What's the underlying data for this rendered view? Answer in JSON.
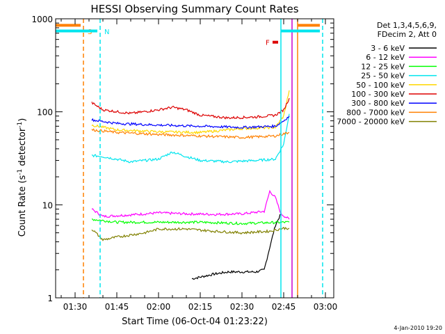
{
  "chart_data": {
    "type": "line",
    "title": "HESSI Observing Summary Count Rates",
    "xlabel": "Start Time (06-Oct-04 01:23:22)",
    "ylabel_main": "Count Rate (s",
    "ylabel_sup1": "-1",
    "ylabel_mid": " detector",
    "ylabel_sup2": "-1",
    "ylabel_end": ")",
    "y_scale": "log",
    "x_range": [
      "01:23",
      "03:03"
    ],
    "y_range": [
      1,
      1000
    ],
    "x_ticks": [
      "01:30",
      "01:45",
      "02:00",
      "02:15",
      "02:30",
      "02:45",
      "03:00"
    ],
    "y_ticks": [
      "1",
      "10",
      "100",
      "1000"
    ],
    "legend_header": [
      "Det 1,3,4,5,6,9,",
      "FDecim 2, Att 0"
    ],
    "legend_position": "right",
    "date_stamp": "4-Jan-2010 19:20",
    "markers": [
      {
        "label": "S",
        "time": "01:33",
        "color": "#ff8000",
        "style": "dashed"
      },
      {
        "label": "N",
        "time": "01:39",
        "color": "#00e5ee",
        "style": "dashed"
      },
      {
        "label": "",
        "time": "02:44",
        "color": "#00e5ee",
        "style": "solid"
      },
      {
        "label": "",
        "time": "02:48",
        "color": "#cc00cc",
        "style": "solid"
      },
      {
        "label": "",
        "time": "02:50",
        "color": "#ff8000",
        "style": "solid"
      },
      {
        "label": "",
        "time": "02:59",
        "color": "#00e5ee",
        "style": "dashed"
      }
    ],
    "flags": [
      {
        "label": "S",
        "from": "01:23",
        "to": "01:32",
        "color": "#ff8000",
        "level": 850
      },
      {
        "label": "N",
        "from": "01:23",
        "to": "01:38",
        "color": "#00e5ee",
        "level": 740
      },
      {
        "label": "",
        "from": "02:50",
        "to": "02:58",
        "color": "#ff8000",
        "level": 850
      },
      {
        "label": "",
        "from": "02:44",
        "to": "02:58",
        "color": "#00e5ee",
        "level": 740
      },
      {
        "label": "F",
        "from": "02:41",
        "to": "02:43",
        "color": "#dd0000",
        "level": 560
      }
    ],
    "series": [
      {
        "name": "3 - 6 keV",
        "color": "#000000",
        "x": [
          "02:12",
          "02:20",
          "02:25",
          "02:30",
          "02:35",
          "02:38",
          "02:40",
          "02:42",
          "02:44"
        ],
        "values": [
          1.6,
          1.8,
          1.9,
          1.9,
          1.9,
          2.0,
          3.5,
          6.0,
          8.0
        ]
      },
      {
        "name": "6 - 12 keV",
        "color": "#ff00ff",
        "x": [
          "01:36",
          "01:40",
          "01:50",
          "02:00",
          "02:10",
          "02:20",
          "02:30",
          "02:38",
          "02:40",
          "02:42",
          "02:44",
          "02:47"
        ],
        "values": [
          9.0,
          7.5,
          7.8,
          8.2,
          8.0,
          7.9,
          8.0,
          8.5,
          14.0,
          12.0,
          8.0,
          7.0
        ]
      },
      {
        "name": "12 - 25 keV",
        "color": "#00ff00",
        "x": [
          "01:36",
          "01:45",
          "02:00",
          "02:15",
          "02:30",
          "02:45",
          "02:47"
        ],
        "values": [
          7.0,
          6.5,
          6.5,
          6.5,
          6.3,
          6.5,
          6.5
        ]
      },
      {
        "name": "25 - 50 keV",
        "color": "#00e5ee",
        "x": [
          "01:36",
          "01:40",
          "01:50",
          "02:00",
          "02:05",
          "02:10",
          "02:15",
          "02:25",
          "02:35",
          "02:42",
          "02:45",
          "02:47"
        ],
        "values": [
          34,
          33,
          29,
          31,
          37,
          33,
          30,
          29,
          30,
          31,
          45,
          95
        ]
      },
      {
        "name": "50 - 100 keV",
        "color": "#ffd700",
        "x": [
          "01:36",
          "01:45",
          "02:00",
          "02:15",
          "02:30",
          "02:42",
          "02:45",
          "02:47"
        ],
        "values": [
          72,
          64,
          61,
          60,
          66,
          68,
          90,
          170
        ]
      },
      {
        "name": "100 - 300 keV",
        "color": "#dd0000",
        "x": [
          "01:36",
          "01:40",
          "01:50",
          "02:00",
          "02:05",
          "02:10",
          "02:15",
          "02:25",
          "02:35",
          "02:42",
          "02:45",
          "02:47"
        ],
        "values": [
          125,
          105,
          96,
          105,
          112,
          105,
          92,
          86,
          88,
          92,
          105,
          140
        ]
      },
      {
        "name": "300 - 800 keV",
        "color": "#0000ff",
        "x": [
          "01:36",
          "01:45",
          "02:00",
          "02:15",
          "02:30",
          "02:42",
          "02:45",
          "02:47"
        ],
        "values": [
          82,
          75,
          72,
          70,
          68,
          70,
          80,
          90
        ]
      },
      {
        "name": "800 - 7000 keV",
        "color": "#ff8000",
        "x": [
          "01:36",
          "01:45",
          "02:00",
          "02:15",
          "02:30",
          "02:42",
          "02:45",
          "02:47"
        ],
        "values": [
          64,
          60,
          57,
          55,
          53,
          55,
          58,
          60
        ]
      },
      {
        "name": "7000 - 20000 keV",
        "color": "#808000",
        "x": [
          "01:36",
          "01:40",
          "01:45",
          "01:55",
          "02:00",
          "02:10",
          "02:20",
          "02:30",
          "02:40",
          "02:45",
          "02:47"
        ],
        "values": [
          5.5,
          4.2,
          4.5,
          5.0,
          5.5,
          5.5,
          5.2,
          5.0,
          5.2,
          5.6,
          5.6
        ]
      }
    ]
  }
}
